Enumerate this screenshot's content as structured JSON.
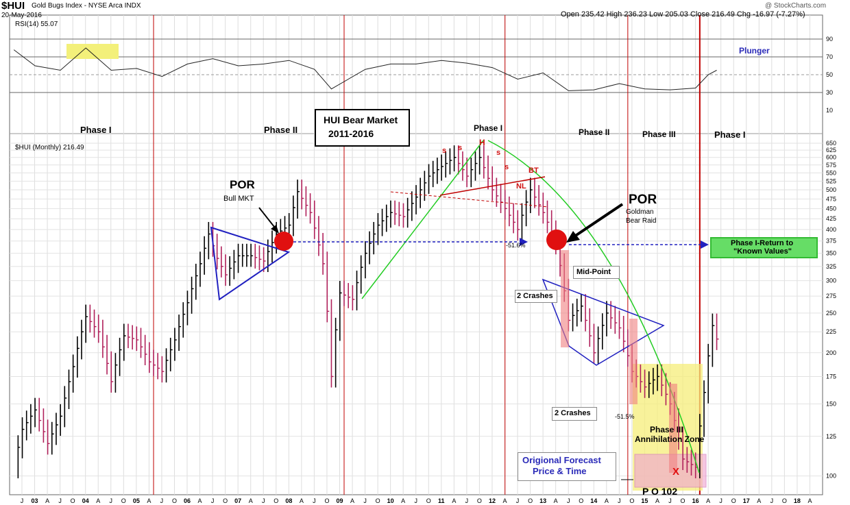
{
  "header": {
    "symbol": "$HUI",
    "name": "Gold Bugs Index - NYSE Arca INDX",
    "date": "20-May-2016",
    "ohlc": "Open 235.42  High 236.23  Low 205.03  Close 216.49  Chg -16.97 (-7.27%)",
    "watermark": "@ StockCharts.com",
    "rsi_label": "RSI(14) 55.07",
    "price_label": "$HUI (Monthly) 216.49"
  },
  "annotations": {
    "plunger": "Plunger",
    "phase1_a": "Phase I",
    "phase2_a": "Phase II",
    "bear_title_1": "HUI Bear Market",
    "bear_title_2": "2011-2016",
    "phase1_b": "Phase I",
    "phase2_b": "Phase II",
    "phase3": "Phase III",
    "phase1_c": "Phase I",
    "por1": "POR",
    "por1_sub": "Bull MKT",
    "por2": "POR",
    "por2_sub1": "Goldman",
    "por2_sub2": "Bear Raid",
    "return_1": "Phase I-Return to",
    "return_2": "\"Known Values\"",
    "midpoint": "Mid-Point",
    "crashes_1": "2 Crashes",
    "crashes_2": "2 Crashes",
    "pct_1": "-51.6%",
    "pct_2": "-51.5%",
    "annihilation_1": "Phase III",
    "annihilation_2": "Annihilation Zone",
    "forecast_1": "Origional Forecast",
    "forecast_2": "Price & Time",
    "po": "P O 102",
    "x_mark": "X",
    "hs_s1": "s",
    "hs_s2": "s",
    "hs_h": "H",
    "hs_s3": "s",
    "hs_s4": "s",
    "hs_nl": "NL",
    "hs_bt": "BT"
  },
  "colors": {
    "up_bar": "#000000",
    "down_bar": "#b0205a",
    "phase_line": "#c00000",
    "trend_blue": "#2020c0",
    "trend_green": "#22cc22",
    "por_red": "#e01010",
    "return_box": "#66dd66",
    "annihilation": "#f5ee7a",
    "forecast_pink": "#f0a8d0"
  },
  "chart_data": {
    "type": "ohlc",
    "title": "$HUI Gold Bugs Index - NYSE Arca INDX",
    "panels": [
      "RSI(14)",
      "$HUI (Monthly)"
    ],
    "rsi_levels": [
      30,
      50,
      70,
      90
    ],
    "rsi_ticks": [
      "90",
      "70",
      "50",
      "30",
      "10"
    ],
    "price_ticks": [
      "650",
      "625",
      "600",
      "575",
      "550",
      "525",
      "500",
      "475",
      "450",
      "425",
      "400",
      "375",
      "350",
      "325",
      "300",
      "275",
      "250",
      "225",
      "200",
      "175",
      "150",
      "125",
      "100"
    ],
    "x_ticks": [
      "J",
      "03",
      "A",
      "J",
      "O",
      "04",
      "A",
      "J",
      "O",
      "05",
      "A",
      "J",
      "O",
      "06",
      "A",
      "J",
      "O",
      "07",
      "A",
      "J",
      "O",
      "08",
      "A",
      "J",
      "O",
      "09",
      "A",
      "J",
      "O",
      "10",
      "A",
      "J",
      "O",
      "11",
      "A",
      "J",
      "O",
      "12",
      "A",
      "J",
      "O",
      "13",
      "A",
      "J",
      "O",
      "14",
      "A",
      "J",
      "O",
      "15",
      "A",
      "J",
      "O",
      "16",
      "A",
      "J",
      "O",
      "17",
      "A",
      "J",
      "O",
      "18",
      "A"
    ],
    "phase_years": [
      "05",
      "09",
      "12",
      "14",
      "16"
    ],
    "price_scale": "log",
    "ylim": [
      90,
      660
    ],
    "monthly_close": [
      [
        "2002-07",
        105
      ],
      [
        "2002-09",
        130
      ],
      [
        "2002-12",
        145
      ],
      [
        "2003-03",
        120
      ],
      [
        "2003-06",
        140
      ],
      [
        "2003-09",
        185
      ],
      [
        "2003-12",
        245
      ],
      [
        "2004-03",
        225
      ],
      [
        "2004-06",
        170
      ],
      [
        "2004-09",
        220
      ],
      [
        "2004-12",
        215
      ],
      [
        "2005-03",
        190
      ],
      [
        "2005-06",
        180
      ],
      [
        "2005-09",
        215
      ],
      [
        "2005-12",
        265
      ],
      [
        "2006-03",
        330
      ],
      [
        "2006-05",
        390
      ],
      [
        "2006-07",
        340
      ],
      [
        "2006-09",
        310
      ],
      [
        "2006-12",
        345
      ],
      [
        "2007-03",
        345
      ],
      [
        "2007-06",
        335
      ],
      [
        "2007-09",
        390
      ],
      [
        "2007-12",
        410
      ],
      [
        "2008-02",
        495
      ],
      [
        "2008-05",
        440
      ],
      [
        "2008-08",
        330
      ],
      [
        "2008-10",
        175
      ],
      [
        "2008-12",
        280
      ],
      [
        "2009-03",
        270
      ],
      [
        "2009-06",
        350
      ],
      [
        "2009-09",
        410
      ],
      [
        "2009-12",
        440
      ],
      [
        "2010-03",
        430
      ],
      [
        "2010-06",
        480
      ],
      [
        "2010-09",
        540
      ],
      [
        "2010-12",
        570
      ],
      [
        "2011-03",
        600
      ],
      [
        "2011-06",
        540
      ],
      [
        "2011-09",
        600
      ],
      [
        "2011-12",
        500
      ],
      [
        "2012-03",
        450
      ],
      [
        "2012-06",
        400
      ],
      [
        "2012-09",
        500
      ],
      [
        "2012-12",
        440
      ],
      [
        "2013-03",
        370
      ],
      [
        "2013-06",
        240
      ],
      [
        "2013-09",
        260
      ],
      [
        "2013-12",
        200
      ],
      [
        "2014-03",
        250
      ],
      [
        "2014-06",
        230
      ],
      [
        "2014-09",
        180
      ],
      [
        "2014-12",
        165
      ],
      [
        "2015-03",
        175
      ],
      [
        "2015-06",
        150
      ],
      [
        "2015-09",
        110
      ],
      [
        "2015-12",
        105
      ],
      [
        "2016-02",
        160
      ],
      [
        "2016-04",
        233
      ],
      [
        "2016-05",
        216
      ]
    ],
    "rsi_values": [
      [
        "2002-07",
        78
      ],
      [
        "2002-12",
        60
      ],
      [
        "2003-06",
        55
      ],
      [
        "2003-12",
        80
      ],
      [
        "2004-06",
        55
      ],
      [
        "2004-12",
        57
      ],
      [
        "2005-06",
        48
      ],
      [
        "2005-12",
        62
      ],
      [
        "2006-06",
        68
      ],
      [
        "2006-12",
        60
      ],
      [
        "2007-06",
        62
      ],
      [
        "2007-12",
        66
      ],
      [
        "2008-06",
        56
      ],
      [
        "2008-10",
        34
      ],
      [
        "2009-06",
        56
      ],
      [
        "2009-12",
        62
      ],
      [
        "2010-06",
        62
      ],
      [
        "2010-12",
        66
      ],
      [
        "2011-06",
        63
      ],
      [
        "2011-12",
        58
      ],
      [
        "2012-06",
        45
      ],
      [
        "2012-12",
        52
      ],
      [
        "2013-06",
        32
      ],
      [
        "2013-12",
        33
      ],
      [
        "2014-06",
        40
      ],
      [
        "2014-12",
        34
      ],
      [
        "2015-06",
        33
      ],
      [
        "2015-12",
        35
      ],
      [
        "2016-03",
        50
      ],
      [
        "2016-05",
        55
      ]
    ]
  }
}
